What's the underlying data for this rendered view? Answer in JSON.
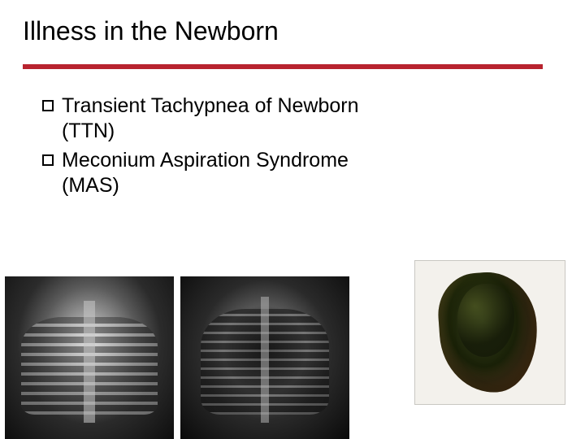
{
  "title": "Illness in the Newborn",
  "rule_color": "#b8232f",
  "bullets": [
    "Transient Tachypnea of Newborn (TTN)",
    "Meconium Aspiration Syndrome (MAS)"
  ],
  "images": {
    "xray1": {
      "alt": "chest-xray-ttn",
      "bg": "grayscale"
    },
    "xray2": {
      "alt": "chest-xray-mas",
      "bg": "grayscale-dark"
    },
    "meconium": {
      "alt": "meconium-sample",
      "bg": "#f3f1ec",
      "border": "#c9c7c2"
    }
  },
  "typography": {
    "title_fontsize": 32,
    "bullet_fontsize": 25,
    "font_family": "Verdana"
  },
  "colors": {
    "text": "#000000",
    "background": "#ffffff",
    "accent": "#b8232f"
  }
}
